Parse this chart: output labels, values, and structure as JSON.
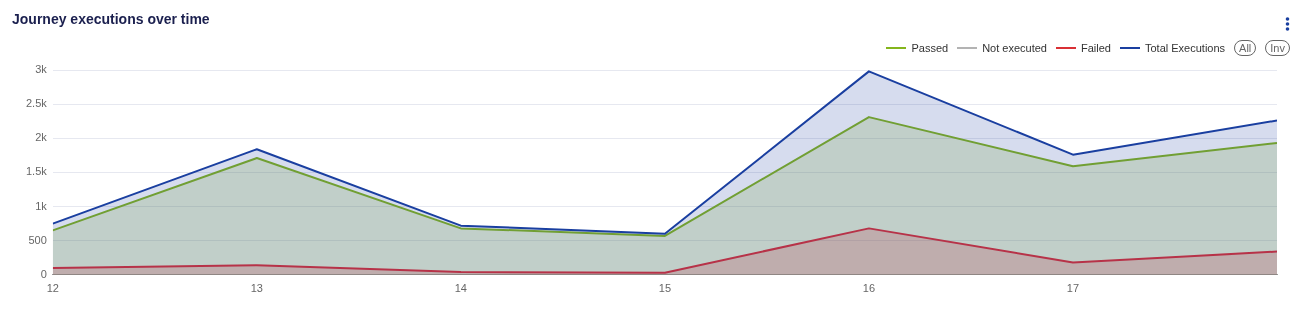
{
  "chart_data": {
    "type": "area",
    "title": "Journey executions over time",
    "x": [
      12,
      13,
      14,
      15,
      16,
      17,
      18
    ],
    "xlim": [
      12,
      18
    ],
    "xticks": [
      12,
      13,
      14,
      15,
      16,
      17
    ],
    "ylim": [
      0,
      3000
    ],
    "yticks": [
      0,
      500,
      {
        "value": 1000,
        "label": "1k"
      },
      {
        "value": 1500,
        "label": "1.5k"
      },
      {
        "value": 2000,
        "label": "2k"
      },
      {
        "value": 2500,
        "label": "2.5k"
      },
      {
        "value": 3000,
        "label": "3k"
      }
    ],
    "series": [
      {
        "name": "Passed",
        "color": "#84b51c",
        "values": [
          650,
          1710,
          680,
          570,
          2310,
          1590,
          1930
        ]
      },
      {
        "name": "Not executed",
        "color": "#b3b3b3",
        "values": [
          null,
          null,
          null,
          null,
          null,
          null,
          null
        ]
      },
      {
        "name": "Failed",
        "color": "#d93035",
        "values": [
          100,
          140,
          40,
          30,
          680,
          180,
          340
        ]
      },
      {
        "name": "Total Executions",
        "color": "#1a3fa0",
        "values": [
          750,
          1840,
          720,
          600,
          2980,
          1760,
          2260
        ]
      }
    ],
    "grid": "y",
    "legend": "top right",
    "marker": "none",
    "line_style": "solid",
    "annotations": [
      "All",
      "Inv"
    ]
  }
}
